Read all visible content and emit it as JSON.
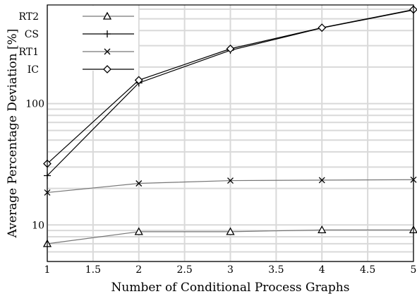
{
  "chart_data": {
    "type": "line",
    "title": "",
    "xlabel": "Number of Conditional Process Graphs",
    "ylabel": "Average Percentage Deviation [%]",
    "x": [
      1,
      2,
      3,
      4,
      5
    ],
    "xlim": [
      1,
      5
    ],
    "ylim": [
      5,
      650
    ],
    "yscale": "log",
    "grid": true,
    "legend_position": "top-left",
    "x_ticks": [
      1,
      1.5,
      2,
      2.5,
      3,
      3.5,
      4,
      4.5,
      5
    ],
    "x_tick_labels": [
      "1",
      "1.5",
      "2",
      "2.5",
      "3",
      "3.5",
      "4",
      "4.5",
      "5"
    ],
    "y_ticks": [
      10,
      100
    ],
    "y_tick_labels": [
      "10",
      "100"
    ],
    "series": [
      {
        "name": "RT2",
        "marker": "triangle",
        "color": "#777777",
        "values": [
          7.0,
          8.8,
          8.8,
          9.1,
          9.1
        ]
      },
      {
        "name": "CS",
        "marker": "plus",
        "color": "#000000",
        "values": [
          25.5,
          148,
          275,
          420,
          590
        ]
      },
      {
        "name": "RT1",
        "marker": "cross",
        "color": "#777777",
        "values": [
          18.5,
          22,
          23.2,
          23.4,
          23.6
        ]
      },
      {
        "name": "IC",
        "marker": "diamond",
        "color": "#000000",
        "values": [
          32,
          156,
          283,
          422,
          595
        ]
      }
    ]
  }
}
